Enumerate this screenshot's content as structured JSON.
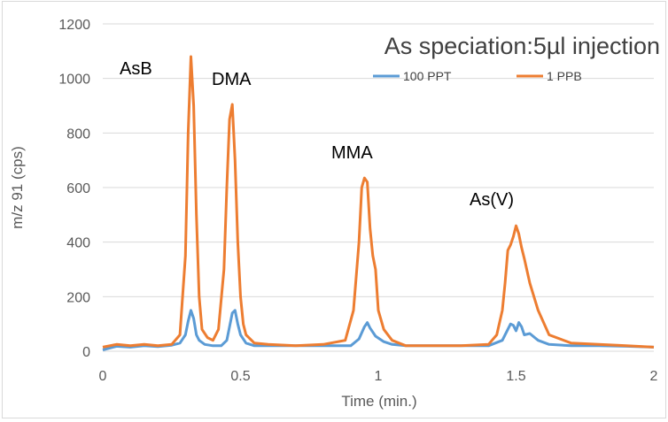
{
  "chart_data": {
    "type": "line",
    "title": "As speciation:5µl injection",
    "xlabel": "Time (min.)",
    "ylabel": "m/z 91 (cps)",
    "xlim": [
      0,
      2
    ],
    "ylim": [
      0,
      1200
    ],
    "xticks": [
      "0",
      "0.5",
      "1",
      "1.5",
      "2"
    ],
    "yticks": [
      "0",
      "200",
      "400",
      "600",
      "800",
      "1000",
      "1200"
    ],
    "grid": "horizontal",
    "legend_position": "top-right",
    "annotations": [
      "AsB",
      "DMA",
      "MMA",
      "As(V)"
    ],
    "series": [
      {
        "name": "100 PPT",
        "color": "#5b9bd5",
        "x": [
          0,
          0.05,
          0.1,
          0.15,
          0.2,
          0.25,
          0.28,
          0.3,
          0.31,
          0.32,
          0.33,
          0.34,
          0.35,
          0.37,
          0.4,
          0.43,
          0.45,
          0.46,
          0.47,
          0.48,
          0.49,
          0.5,
          0.52,
          0.55,
          0.6,
          0.7,
          0.8,
          0.9,
          0.93,
          0.95,
          0.96,
          0.97,
          0.99,
          1.02,
          1.05,
          1.1,
          1.2,
          1.3,
          1.4,
          1.45,
          1.47,
          1.48,
          1.49,
          1.5,
          1.51,
          1.52,
          1.53,
          1.55,
          1.58,
          1.62,
          1.7,
          1.8,
          1.9,
          2.0
        ],
        "y": [
          5,
          18,
          15,
          20,
          17,
          22,
          30,
          60,
          110,
          150,
          120,
          60,
          40,
          25,
          20,
          20,
          40,
          90,
          140,
          150,
          100,
          60,
          30,
          20,
          20,
          20,
          20,
          20,
          45,
          90,
          105,
          85,
          55,
          35,
          25,
          20,
          20,
          20,
          20,
          40,
          80,
          100,
          95,
          75,
          105,
          90,
          60,
          65,
          40,
          25,
          20,
          20,
          18,
          15
        ]
      },
      {
        "name": "1 PPB",
        "color": "#ed7d31",
        "x": [
          0,
          0.05,
          0.1,
          0.15,
          0.2,
          0.25,
          0.28,
          0.3,
          0.31,
          0.32,
          0.33,
          0.34,
          0.35,
          0.36,
          0.38,
          0.4,
          0.42,
          0.44,
          0.45,
          0.46,
          0.47,
          0.48,
          0.49,
          0.5,
          0.51,
          0.52,
          0.55,
          0.6,
          0.7,
          0.8,
          0.88,
          0.91,
          0.93,
          0.94,
          0.95,
          0.96,
          0.97,
          0.98,
          0.99,
          1.0,
          1.02,
          1.05,
          1.1,
          1.2,
          1.3,
          1.4,
          1.43,
          1.45,
          1.46,
          1.47,
          1.48,
          1.49,
          1.5,
          1.51,
          1.52,
          1.53,
          1.55,
          1.58,
          1.62,
          1.7,
          1.8,
          1.9,
          2.0
        ],
        "y": [
          15,
          25,
          20,
          25,
          20,
          25,
          60,
          350,
          800,
          1080,
          900,
          500,
          200,
          80,
          50,
          40,
          80,
          300,
          600,
          850,
          905,
          700,
          400,
          200,
          100,
          60,
          30,
          25,
          20,
          25,
          40,
          150,
          400,
          600,
          635,
          620,
          450,
          350,
          300,
          150,
          80,
          40,
          20,
          20,
          20,
          25,
          60,
          150,
          250,
          370,
          390,
          420,
          460,
          430,
          380,
          340,
          250,
          150,
          60,
          30,
          25,
          20,
          15
        ]
      }
    ]
  }
}
